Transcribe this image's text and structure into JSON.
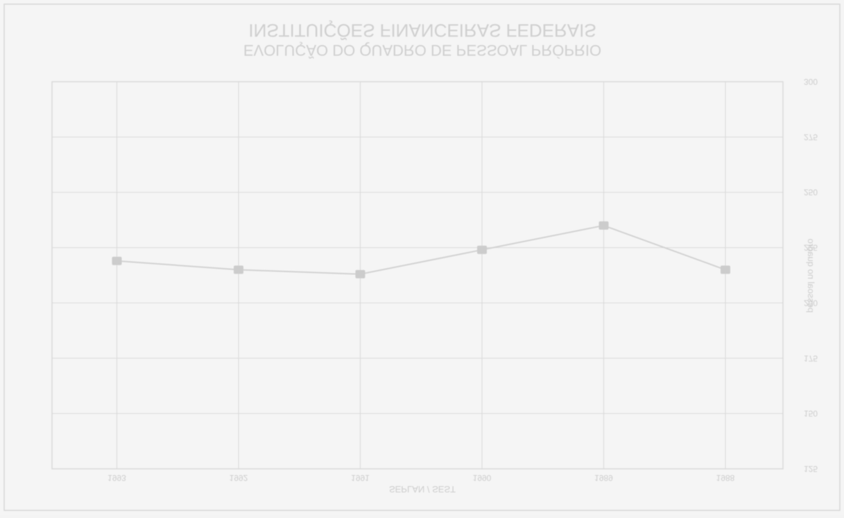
{
  "colors": {
    "background": "#f5f5f5",
    "grid": "#d9d9d9",
    "line": "#d2d2d2",
    "marker": "#cccccc",
    "text": "#cdcdcd"
  },
  "chart_data": {
    "type": "line",
    "title": "INSTITUIÇÕES FINANCEIRAS FEDERAIS",
    "subtitle": "EVOLUÇÃO DO QUADRO DE PESSOAL PRÓPRIO",
    "xlabel": "SEPLAN / SEST",
    "ylabel": "pessoal no quadro",
    "categories": [
      "1988",
      "1989",
      "1990",
      "1991",
      "1992",
      "1993"
    ],
    "y_ticks": [
      "125",
      "150",
      "175",
      "200",
      "225",
      "250",
      "275",
      "300"
    ],
    "ylim": [
      125,
      300
    ],
    "grid": true,
    "series": [
      {
        "values": [
          215,
          235,
          224,
          213,
          215,
          219
        ]
      }
    ],
    "mirrored": true
  }
}
